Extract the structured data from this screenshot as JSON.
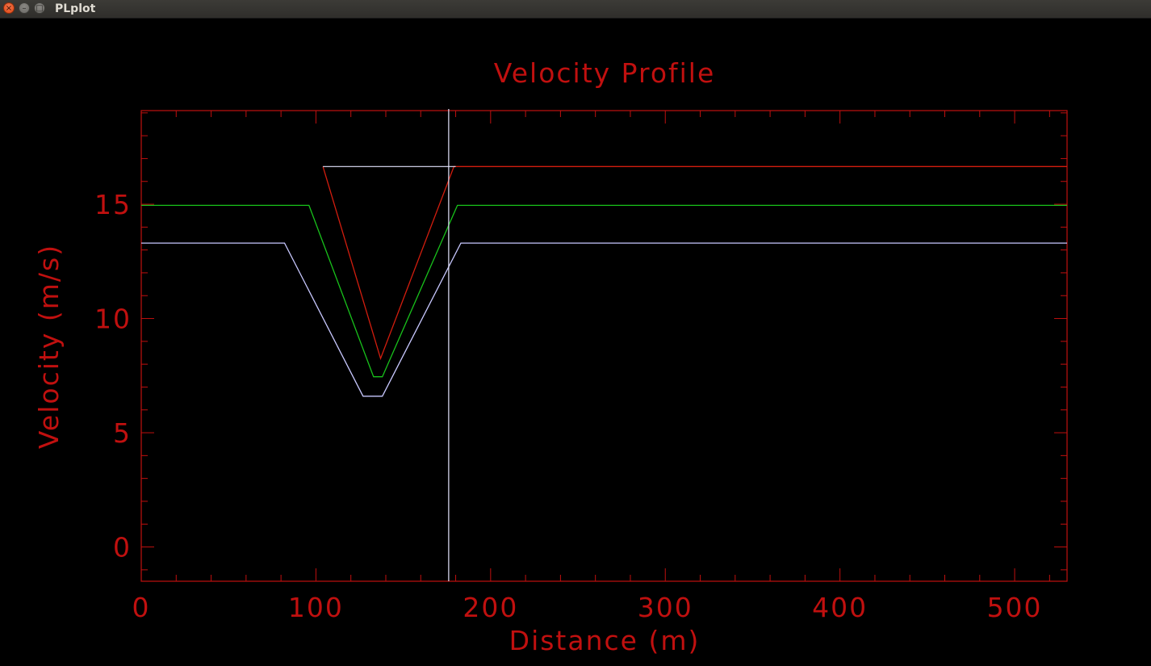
{
  "window": {
    "title": "PLplot",
    "close_glyph": "×",
    "minimize_glyph": "–",
    "maximize_glyph": "□"
  },
  "colors": {
    "axes": "#c0100f",
    "series_red": "#d21d0e",
    "series_green": "#18c21b",
    "series_blue": "#c8c8ff",
    "cursor": "#e6e6ff",
    "background": "#000000"
  },
  "chart_data": {
    "type": "line",
    "title": "Velocity Profile",
    "xlabel": "Distance (m)",
    "ylabel": "Velocity (m/s)",
    "xlim": [
      0,
      530
    ],
    "ylim": [
      -1.5,
      19.1
    ],
    "xticks": [
      0,
      100,
      200,
      300,
      400,
      500
    ],
    "xtick_labels": [
      "0",
      "100",
      "200",
      "300",
      "400",
      "500"
    ],
    "yticks": [
      0,
      5,
      10,
      15
    ],
    "ytick_labels": [
      "0",
      "5",
      "10",
      "15"
    ],
    "x_minor_step": 20,
    "y_minor_step": 1,
    "grid": false,
    "series": [
      {
        "color": "red",
        "x": [
          104,
          137,
          179,
          530
        ],
        "y": [
          16.65,
          8.25,
          16.65,
          16.65
        ]
      },
      {
        "color": "green",
        "x": [
          0,
          96,
          133,
          138,
          181,
          530
        ],
        "y": [
          14.95,
          14.95,
          7.45,
          7.45,
          14.95,
          14.95
        ]
      },
      {
        "color": "blue",
        "x": [
          0,
          82,
          127,
          138,
          183,
          530
        ],
        "y": [
          13.3,
          13.3,
          6.6,
          6.6,
          13.3,
          13.3
        ]
      }
    ],
    "crosshair": {
      "x": 176,
      "y": 16.65,
      "hline_x": [
        104,
        180
      ]
    }
  }
}
